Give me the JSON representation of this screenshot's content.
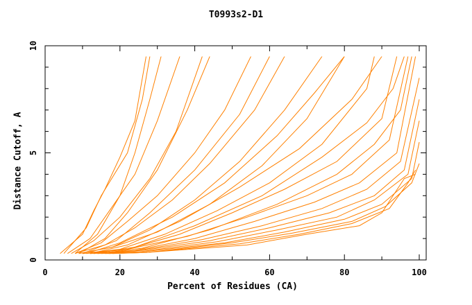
{
  "chart_data": {
    "type": "line",
    "title": "T0993s2-D1",
    "xlabel": "Percent of Residues (CA)",
    "ylabel": "Distance Cutoff, A",
    "xlim": [
      0,
      100
    ],
    "ylim": [
      0,
      10
    ],
    "xticks": [
      "0",
      "20",
      "40",
      "60",
      "80",
      "100"
    ],
    "yticks": [
      "0",
      "5",
      "10"
    ],
    "grid": false,
    "color": "#ff8000",
    "series": [
      {
        "points": [
          [
            4,
            0.3
          ],
          [
            10,
            1.2
          ],
          [
            13,
            2.3
          ],
          [
            16,
            3.3
          ],
          [
            20,
            4.8
          ],
          [
            24,
            6.5
          ],
          [
            27,
            9.5
          ]
        ]
      },
      {
        "points": [
          [
            5,
            0.3
          ],
          [
            11,
            1.5
          ],
          [
            15,
            3.0
          ],
          [
            22,
            5.0
          ],
          [
            26,
            7.5
          ],
          [
            28,
            9.5
          ]
        ]
      },
      {
        "points": [
          [
            6,
            0.3
          ],
          [
            12,
            1.0
          ],
          [
            18,
            2.5
          ],
          [
            24,
            4.0
          ],
          [
            30,
            6.5
          ],
          [
            36,
            9.5
          ]
        ]
      },
      {
        "points": [
          [
            7,
            0.3
          ],
          [
            13,
            0.9
          ],
          [
            20,
            2.0
          ],
          [
            28,
            3.8
          ],
          [
            35,
            6.0
          ],
          [
            42,
            9.5
          ]
        ]
      },
      {
        "points": [
          [
            8,
            0.3
          ],
          [
            15,
            0.8
          ],
          [
            22,
            1.8
          ],
          [
            30,
            3.0
          ],
          [
            40,
            5.0
          ],
          [
            48,
            7.0
          ],
          [
            55,
            9.5
          ]
        ]
      },
      {
        "points": [
          [
            8,
            0.3
          ],
          [
            16,
            0.7
          ],
          [
            24,
            1.5
          ],
          [
            34,
            2.8
          ],
          [
            44,
            4.5
          ],
          [
            56,
            7.0
          ],
          [
            64,
            9.5
          ]
        ]
      },
      {
        "points": [
          [
            9,
            0.3
          ],
          [
            18,
            0.6
          ],
          [
            28,
            1.4
          ],
          [
            40,
            2.8
          ],
          [
            52,
            4.6
          ],
          [
            64,
            7.0
          ],
          [
            74,
            9.5
          ]
        ]
      },
      {
        "points": [
          [
            9,
            0.3
          ],
          [
            18,
            0.6
          ],
          [
            30,
            1.3
          ],
          [
            44,
            2.6
          ],
          [
            58,
            4.4
          ],
          [
            70,
            6.6
          ],
          [
            80,
            9.5
          ]
        ]
      },
      {
        "points": [
          [
            10,
            0.3
          ],
          [
            20,
            0.5
          ],
          [
            32,
            1.2
          ],
          [
            46,
            2.3
          ],
          [
            60,
            3.6
          ],
          [
            74,
            5.4
          ],
          [
            86,
            8.0
          ],
          [
            88,
            9.5
          ]
        ]
      },
      {
        "points": [
          [
            10,
            0.3
          ],
          [
            22,
            0.5
          ],
          [
            36,
            1.2
          ],
          [
            50,
            2.2
          ],
          [
            64,
            3.3
          ],
          [
            78,
            4.6
          ],
          [
            90,
            6.6
          ],
          [
            94,
            9.5
          ]
        ]
      },
      {
        "points": [
          [
            11,
            0.3
          ],
          [
            22,
            0.5
          ],
          [
            38,
            1.1
          ],
          [
            54,
            2.0
          ],
          [
            70,
            3.0
          ],
          [
            82,
            4.0
          ],
          [
            92,
            5.6
          ],
          [
            97,
            9.5
          ]
        ]
      },
      {
        "points": [
          [
            12,
            0.3
          ],
          [
            24,
            0.45
          ],
          [
            40,
            1.0
          ],
          [
            56,
            1.8
          ],
          [
            72,
            2.7
          ],
          [
            84,
            3.6
          ],
          [
            94,
            5.0
          ],
          [
            99,
            9.5
          ]
        ]
      },
      {
        "points": [
          [
            12,
            0.3
          ],
          [
            25,
            0.45
          ],
          [
            42,
            0.95
          ],
          [
            58,
            1.6
          ],
          [
            74,
            2.4
          ],
          [
            86,
            3.3
          ],
          [
            95,
            4.6
          ],
          [
            100,
            8.5
          ]
        ]
      },
      {
        "points": [
          [
            13,
            0.3
          ],
          [
            26,
            0.45
          ],
          [
            44,
            0.9
          ],
          [
            60,
            1.5
          ],
          [
            76,
            2.2
          ],
          [
            88,
            3.0
          ],
          [
            96,
            4.2
          ],
          [
            100,
            7.5
          ]
        ]
      },
      {
        "points": [
          [
            14,
            0.3
          ],
          [
            26,
            0.4
          ],
          [
            46,
            0.85
          ],
          [
            62,
            1.4
          ],
          [
            78,
            2.0
          ],
          [
            88,
            2.8
          ],
          [
            97,
            4.0
          ],
          [
            100,
            6.5
          ]
        ]
      },
      {
        "points": [
          [
            15,
            0.3
          ],
          [
            27,
            0.4
          ],
          [
            48,
            0.8
          ],
          [
            64,
            1.3
          ],
          [
            80,
            1.9
          ],
          [
            90,
            2.6
          ],
          [
            98,
            3.8
          ],
          [
            100,
            5.5
          ]
        ]
      },
      {
        "points": [
          [
            16,
            0.3
          ],
          [
            27,
            0.35
          ],
          [
            50,
            0.8
          ],
          [
            66,
            1.25
          ],
          [
            82,
            1.8
          ],
          [
            91,
            2.5
          ],
          [
            98,
            3.6
          ],
          [
            100,
            4.5
          ]
        ]
      },
      {
        "points": [
          [
            17,
            0.3
          ],
          [
            27,
            0.35
          ],
          [
            52,
            0.75
          ],
          [
            68,
            1.2
          ],
          [
            82,
            1.7
          ],
          [
            92,
            2.4
          ],
          [
            97,
            3.6
          ],
          [
            99,
            4.2
          ]
        ]
      },
      {
        "points": [
          [
            18,
            0.3
          ],
          [
            27,
            0.35
          ],
          [
            54,
            0.7
          ],
          [
            70,
            1.2
          ],
          [
            84,
            1.6
          ],
          [
            90,
            2.2
          ],
          [
            96,
            3.8
          ],
          [
            99,
            4.0
          ]
        ]
      },
      {
        "points": [
          [
            8,
            0.3
          ],
          [
            14,
            1.2
          ],
          [
            20,
            3.0
          ],
          [
            24,
            5.0
          ],
          [
            28,
            7.5
          ],
          [
            31,
            9.5
          ]
        ]
      },
      {
        "points": [
          [
            9,
            0.3
          ],
          [
            16,
            1.0
          ],
          [
            22,
            2.2
          ],
          [
            30,
            4.2
          ],
          [
            38,
            7.0
          ],
          [
            44,
            9.5
          ]
        ]
      },
      {
        "points": [
          [
            10,
            0.3
          ],
          [
            19,
            0.9
          ],
          [
            28,
            2.2
          ],
          [
            40,
            4.2
          ],
          [
            52,
            6.8
          ],
          [
            60,
            9.5
          ]
        ]
      },
      {
        "points": [
          [
            11,
            0.3
          ],
          [
            20,
            0.8
          ],
          [
            34,
            2.0
          ],
          [
            48,
            3.6
          ],
          [
            62,
            5.8
          ],
          [
            72,
            7.8
          ],
          [
            80,
            9.5
          ]
        ]
      },
      {
        "points": [
          [
            12,
            0.3
          ],
          [
            22,
            0.7
          ],
          [
            36,
            1.8
          ],
          [
            52,
            3.4
          ],
          [
            68,
            5.2
          ],
          [
            82,
            7.5
          ],
          [
            90,
            9.5
          ]
        ]
      },
      {
        "points": [
          [
            13,
            0.3
          ],
          [
            24,
            0.6
          ],
          [
            40,
            1.6
          ],
          [
            58,
            3.0
          ],
          [
            74,
            4.8
          ],
          [
            86,
            6.4
          ],
          [
            93,
            8.0
          ],
          [
            96,
            9.5
          ]
        ]
      },
      {
        "points": [
          [
            14,
            0.3
          ],
          [
            26,
            0.55
          ],
          [
            44,
            1.4
          ],
          [
            62,
            2.6
          ],
          [
            78,
            4.0
          ],
          [
            88,
            5.4
          ],
          [
            95,
            7.0
          ],
          [
            98,
            9.5
          ]
        ]
      }
    ]
  }
}
